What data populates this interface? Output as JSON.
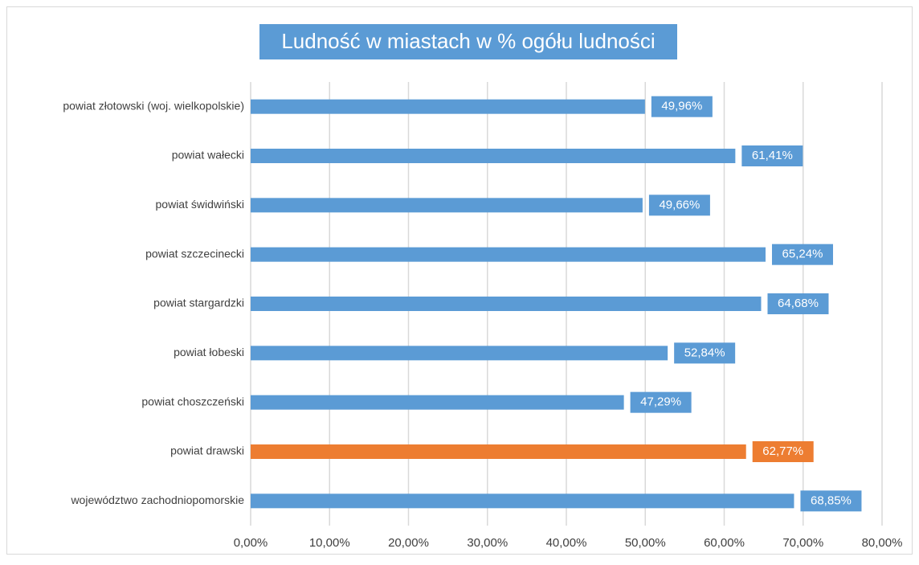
{
  "chart_data": {
    "type": "bar",
    "orientation": "horizontal",
    "title": "Ludność  w miastach w % ogółu ludności",
    "categories": [
      "powiat złotowski (woj. wielkopolskie)",
      "powiat wałecki",
      "powiat świdwiński",
      "powiat szczecinecki",
      "powiat stargardzki",
      "powiat łobeski",
      "powiat choszczeński",
      "powiat drawski",
      "województwo zachodniopomorskie"
    ],
    "values": [
      49.96,
      61.41,
      49.66,
      65.24,
      64.68,
      52.84,
      47.29,
      62.77,
      68.85
    ],
    "value_labels": [
      "49,96%",
      "61,41%",
      "49,66%",
      "65,24%",
      "64,68%",
      "52,84%",
      "47,29%",
      "62,77%",
      "68,85%"
    ],
    "colors": [
      "#5b9bd5",
      "#5b9bd5",
      "#5b9bd5",
      "#5b9bd5",
      "#5b9bd5",
      "#5b9bd5",
      "#5b9bd5",
      "#ed7d31",
      "#5b9bd5"
    ],
    "xlim": [
      0,
      80
    ],
    "xticks": [
      {
        "value": 0,
        "label": "0,00%"
      },
      {
        "value": 10,
        "label": "10,00%"
      },
      {
        "value": 20,
        "label": "20,00%"
      },
      {
        "value": 30,
        "label": "30,00%"
      },
      {
        "value": 40,
        "label": "40,00%"
      },
      {
        "value": 50,
        "label": "50,00%"
      },
      {
        "value": 60,
        "label": "60,00%"
      },
      {
        "value": 70,
        "label": "70,00%"
      },
      {
        "value": 80,
        "label": "80,00%"
      }
    ],
    "grid": true
  }
}
